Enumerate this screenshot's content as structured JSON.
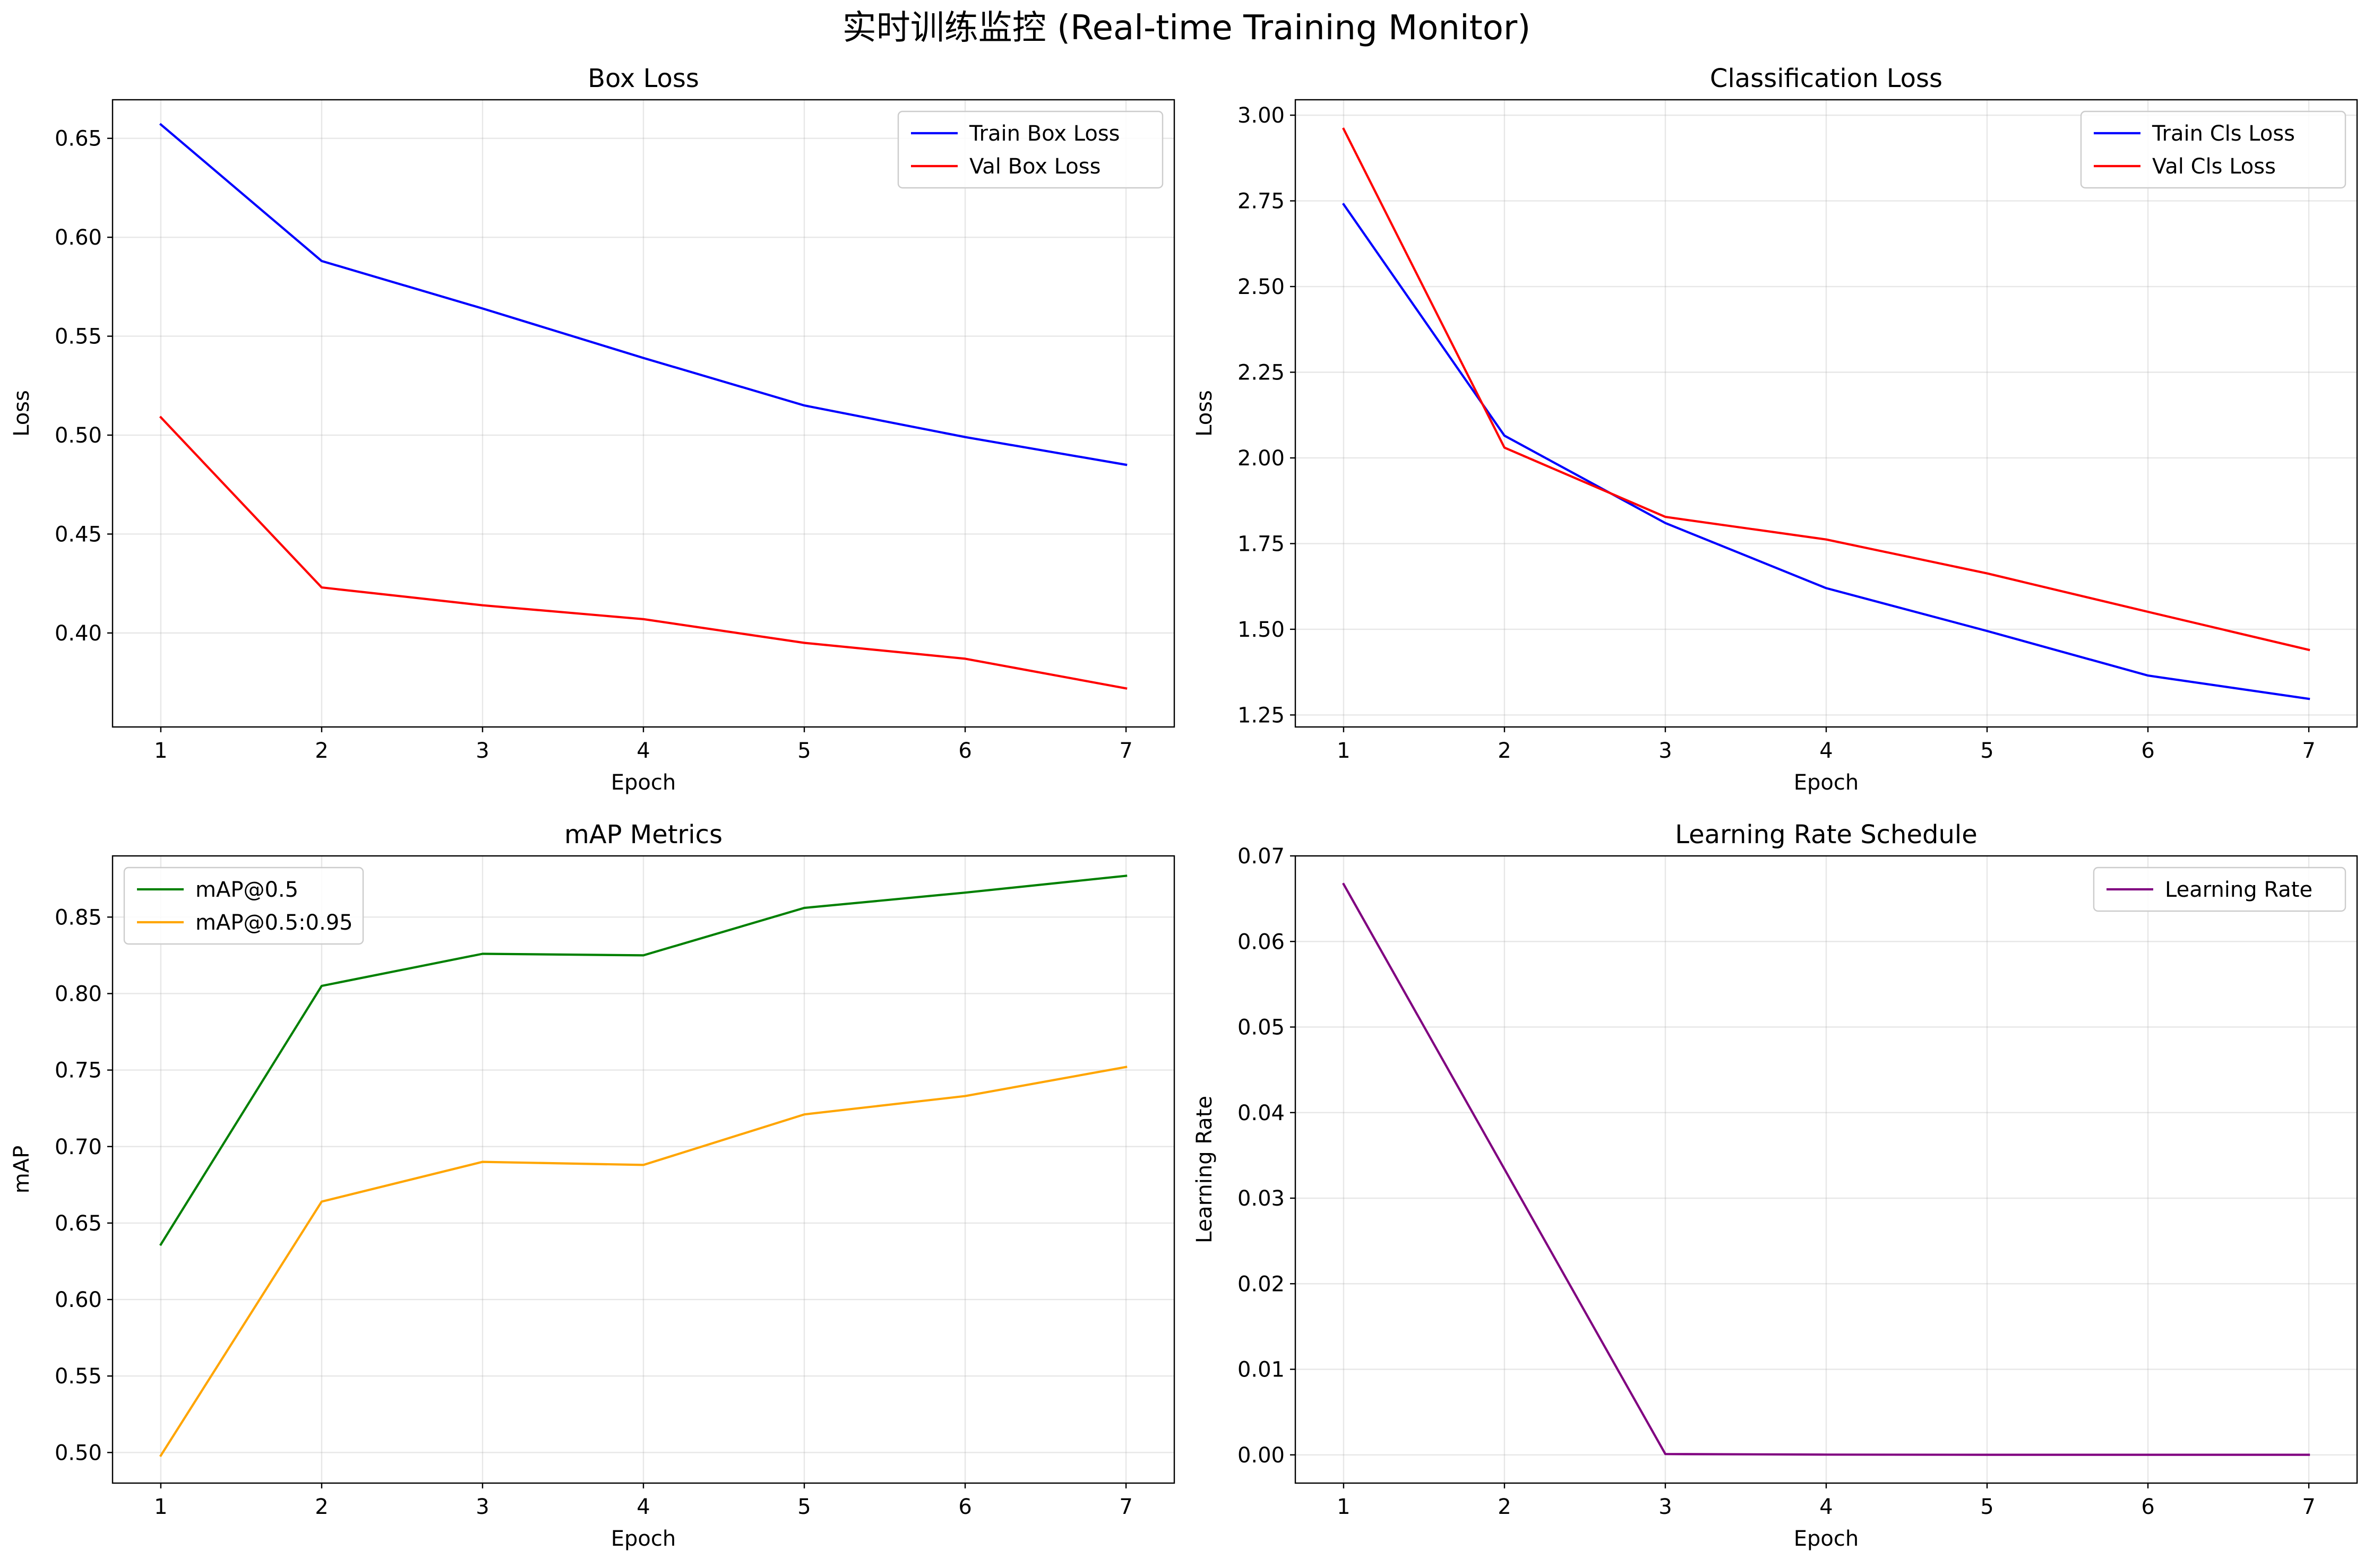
{
  "figure": {
    "title": "实时训练监控 (Real-time Training Monitor)"
  },
  "chart_data": [
    {
      "type": "line",
      "title": "Box Loss",
      "xlabel": "Epoch",
      "ylabel": "Loss",
      "x": [
        1,
        2,
        3,
        4,
        5,
        6,
        7
      ],
      "xlim": [
        0.7,
        7.3
      ],
      "ylim": [
        0.3525,
        0.6695
      ],
      "xticks": [
        1,
        2,
        3,
        4,
        5,
        6,
        7
      ],
      "yticks": [
        0.4,
        0.45,
        0.5,
        0.55,
        0.6,
        0.65
      ],
      "ytick_labels": [
        "0.40",
        "0.45",
        "0.50",
        "0.55",
        "0.60",
        "0.65"
      ],
      "grid": true,
      "legend": "upper right",
      "series": [
        {
          "name": "Train Box Loss",
          "color": "#0000ff",
          "values": [
            0.657,
            0.588,
            0.564,
            0.539,
            0.515,
            0.499,
            0.485
          ]
        },
        {
          "name": "Val Box Loss",
          "color": "#ff0000",
          "values": [
            0.509,
            0.423,
            0.414,
            0.407,
            0.395,
            0.387,
            0.372
          ]
        }
      ]
    },
    {
      "type": "line",
      "title": "Classification Loss",
      "xlabel": "Epoch",
      "ylabel": "Loss",
      "x": [
        1,
        2,
        3,
        4,
        5,
        6,
        7
      ],
      "xlim": [
        0.7,
        7.3
      ],
      "ylim": [
        1.215,
        3.045
      ],
      "xticks": [
        1,
        2,
        3,
        4,
        5,
        6,
        7
      ],
      "yticks": [
        1.25,
        1.5,
        1.75,
        2.0,
        2.25,
        2.5,
        2.75,
        3.0
      ],
      "ytick_labels": [
        "1.25",
        "1.50",
        "1.75",
        "2.00",
        "2.25",
        "2.50",
        "2.75",
        "3.00"
      ],
      "grid": true,
      "legend": "upper right",
      "series": [
        {
          "name": "Train Cls Loss",
          "color": "#0000ff",
          "values": [
            2.74,
            2.065,
            1.81,
            1.62,
            1.495,
            1.365,
            1.297
          ]
        },
        {
          "name": "Val Cls Loss",
          "color": "#ff0000",
          "values": [
            2.96,
            2.03,
            1.828,
            1.762,
            1.663,
            1.551,
            1.44
          ]
        }
      ]
    },
    {
      "type": "line",
      "title": "mAP Metrics",
      "xlabel": "Epoch",
      "ylabel": "mAP",
      "x": [
        1,
        2,
        3,
        4,
        5,
        6,
        7
      ],
      "xlim": [
        0.7,
        7.3
      ],
      "ylim": [
        0.48,
        0.89
      ],
      "xticks": [
        1,
        2,
        3,
        4,
        5,
        6,
        7
      ],
      "yticks": [
        0.5,
        0.55,
        0.6,
        0.65,
        0.7,
        0.75,
        0.8,
        0.85
      ],
      "ytick_labels": [
        "0.50",
        "0.55",
        "0.60",
        "0.65",
        "0.70",
        "0.75",
        "0.80",
        "0.85"
      ],
      "grid": true,
      "legend": "upper left",
      "series": [
        {
          "name": "mAP@0.5",
          "color": "#008000",
          "values": [
            0.636,
            0.805,
            0.826,
            0.825,
            0.856,
            0.866,
            0.877
          ]
        },
        {
          "name": "mAP@0.5:0.95",
          "color": "#ffa500",
          "values": [
            0.498,
            0.664,
            0.69,
            0.688,
            0.721,
            0.733,
            0.752
          ]
        }
      ]
    },
    {
      "type": "line",
      "title": "Learning Rate Schedule",
      "xlabel": "Epoch",
      "ylabel": "Learning Rate",
      "x": [
        1,
        2,
        3,
        4,
        5,
        6,
        7
      ],
      "xlim": [
        0.7,
        7.3
      ],
      "ylim": [
        -0.0033,
        0.07
      ],
      "xticks": [
        1,
        2,
        3,
        4,
        5,
        6,
        7
      ],
      "yticks": [
        0,
        0.01,
        0.02,
        0.03,
        0.04,
        0.05,
        0.06,
        0.07
      ],
      "ytick_labels": [
        "0.00",
        "0.01",
        "0.02",
        "0.03",
        "0.04",
        "0.05",
        "0.06",
        "0.07"
      ],
      "grid": true,
      "legend": "upper right",
      "series": [
        {
          "name": "Learning Rate",
          "color": "#800080",
          "values": [
            0.0667,
            0.0334,
            0.0001,
            3e-05,
            1e-05,
            1e-05,
            1e-05
          ]
        }
      ]
    }
  ]
}
